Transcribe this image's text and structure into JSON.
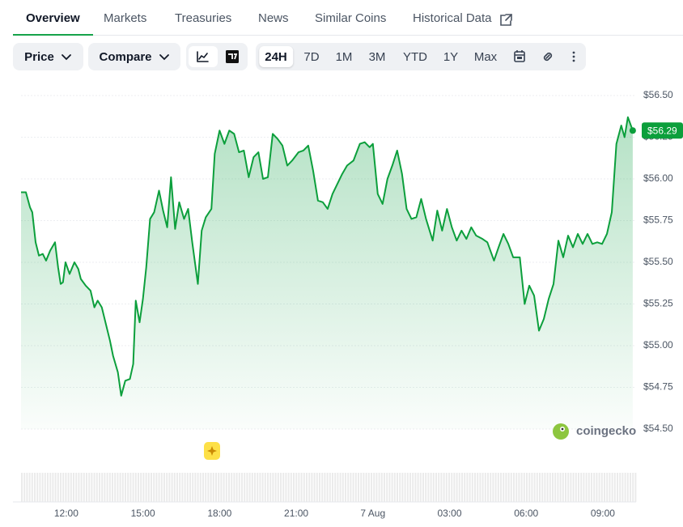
{
  "tabs": [
    "Overview",
    "Markets",
    "Treasuries",
    "News",
    "Similar Coins",
    "Historical Data"
  ],
  "active_tab": 0,
  "toolbar": {
    "selects": [
      "Price",
      "Compare"
    ],
    "ranges": [
      "24H",
      "7D",
      "1M",
      "3M",
      "YTD",
      "1Y",
      "Max"
    ],
    "active_range": 0
  },
  "chart_data": {
    "type": "line",
    "color": "#0c9f3c",
    "grid": true,
    "watermark": "coingecko",
    "xlim": [
      10.23,
      34.3
    ],
    "xticks": [
      {
        "value": 12,
        "label": "12:00"
      },
      {
        "value": 15,
        "label": "15:00"
      },
      {
        "value": 18,
        "label": "18:00"
      },
      {
        "value": 21,
        "label": "21:00"
      },
      {
        "value": 24,
        "label": "7 Aug"
      },
      {
        "value": 27,
        "label": "03:00"
      },
      {
        "value": 30,
        "label": "06:00"
      },
      {
        "value": 33,
        "label": "09:00"
      }
    ],
    "ylim": [
      54.5,
      56.5
    ],
    "yticks": [
      {
        "value": 54.5,
        "label": "$54.50"
      },
      {
        "value": 54.75,
        "label": "$54.75"
      },
      {
        "value": 55,
        "label": "$55.00"
      },
      {
        "value": 55.25,
        "label": "$55.25"
      },
      {
        "value": 55.5,
        "label": "$55.50"
      },
      {
        "value": 55.75,
        "label": "$55.75"
      },
      {
        "value": 56,
        "label": "$56.00"
      },
      {
        "value": 56.25,
        "label": "$56.25"
      },
      {
        "value": 56.5,
        "label": "$56.50"
      }
    ],
    "current_price": {
      "value": 56.29,
      "label": "$56.29"
    },
    "x": [
      10.23,
      10.42,
      10.58,
      10.67,
      10.8,
      10.93,
      11.08,
      11.21,
      11.37,
      11.56,
      11.68,
      11.78,
      11.87,
      11.97,
      12.13,
      12.32,
      12.47,
      12.57,
      12.76,
      12.95,
      13.1,
      13.23,
      13.39,
      13.55,
      13.71,
      13.83,
      14.02,
      14.15,
      14.31,
      14.49,
      14.62,
      14.72,
      14.87,
      15.0,
      15.13,
      15.28,
      15.44,
      15.63,
      15.79,
      15.95,
      16.1,
      16.26,
      16.42,
      16.61,
      16.77,
      16.93,
      17.15,
      17.3,
      17.46,
      17.68,
      17.81,
      18.0,
      18.19,
      18.38,
      18.57,
      18.76,
      18.95,
      19.14,
      19.33,
      19.52,
      19.7,
      19.89,
      20.08,
      20.27,
      20.46,
      20.65,
      20.84,
      21.09,
      21.28,
      21.47,
      21.66,
      21.85,
      22.04,
      22.23,
      22.42,
      22.61,
      22.8,
      22.99,
      23.24,
      23.49,
      23.68,
      23.87,
      24.0,
      24.19,
      24.38,
      24.57,
      24.76,
      24.95,
      25.14,
      25.32,
      25.51,
      25.7,
      25.89,
      26.08,
      26.34,
      26.52,
      26.71,
      26.9,
      27.09,
      27.28,
      27.47,
      27.66,
      27.85,
      28.04,
      28.29,
      28.48,
      28.74,
      28.92,
      29.11,
      29.3,
      29.49,
      29.75,
      29.94,
      30.12,
      30.31,
      30.5,
      30.69,
      30.88,
      31.07,
      31.26,
      31.45,
      31.64,
      31.83,
      32.02,
      32.21,
      32.4,
      32.59,
      32.78,
      32.97,
      33.16,
      33.35,
      33.53,
      33.72,
      33.85,
      33.98,
      34.17
    ],
    "values": [
      55.92,
      55.92,
      55.83,
      55.8,
      55.62,
      55.54,
      55.55,
      55.51,
      55.57,
      55.62,
      55.47,
      55.37,
      55.38,
      55.5,
      55.43,
      55.5,
      55.46,
      55.4,
      55.36,
      55.33,
      55.23,
      55.27,
      55.23,
      55.13,
      55.03,
      54.94,
      54.84,
      54.7,
      54.79,
      54.8,
      54.89,
      55.27,
      55.14,
      55.28,
      55.47,
      55.76,
      55.8,
      55.93,
      55.81,
      55.71,
      56.01,
      55.7,
      55.86,
      55.76,
      55.82,
      55.62,
      55.37,
      55.69,
      55.77,
      55.82,
      56.15,
      56.29,
      56.21,
      56.29,
      56.27,
      56.16,
      56.17,
      56.01,
      56.13,
      56.16,
      56.0,
      56.01,
      56.27,
      56.24,
      56.2,
      56.08,
      56.11,
      56.16,
      56.17,
      56.2,
      56.05,
      55.87,
      55.86,
      55.82,
      55.91,
      55.97,
      56.03,
      56.08,
      56.11,
      56.21,
      56.22,
      56.19,
      56.21,
      55.91,
      55.85,
      56.0,
      56.08,
      56.17,
      56.03,
      55.82,
      55.76,
      55.77,
      55.88,
      55.76,
      55.63,
      55.81,
      55.69,
      55.82,
      55.71,
      55.63,
      55.69,
      55.64,
      55.71,
      55.66,
      55.64,
      55.62,
      55.51,
      55.59,
      55.67,
      55.61,
      55.53,
      55.53,
      55.25,
      55.36,
      55.3,
      55.09,
      55.16,
      55.28,
      55.37,
      55.63,
      55.53,
      55.66,
      55.59,
      55.67,
      55.61,
      55.67,
      55.61,
      55.62,
      55.61,
      55.67,
      55.8,
      56.21,
      56.32,
      56.25,
      56.37,
      56.29
    ]
  }
}
